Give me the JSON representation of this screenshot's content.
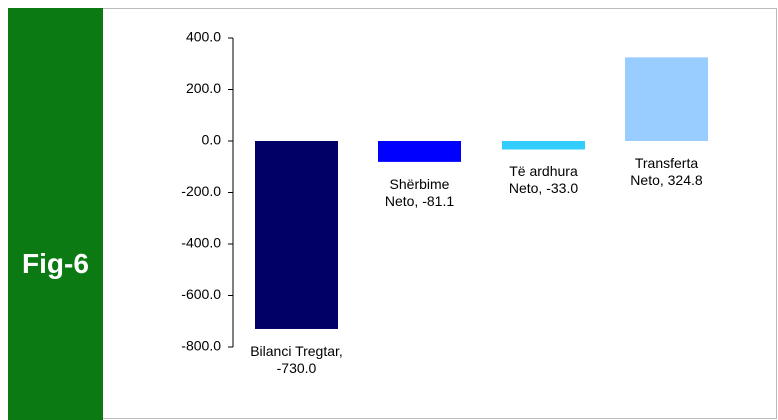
{
  "sidebar": {
    "label": "Fig-6"
  },
  "chart_data": {
    "type": "bar",
    "values": [
      -730.0,
      -81.1,
      -33.0,
      324.8
    ],
    "value_labels": [
      "Bilanci Tregtar, -730.0",
      "Shërbime Neto, -81.1",
      "Të ardhura Neto, -33.0",
      "Transferta Neto, 324.8"
    ],
    "colors": [
      "#000066",
      "#0000ff",
      "#33ccff",
      "#99ccff"
    ],
    "ylim": [
      -800,
      400
    ],
    "yticks": [
      {
        "value": 400,
        "label": "400.0"
      },
      {
        "value": 200,
        "label": "200.0"
      },
      {
        "value": 0,
        "label": "0.0"
      },
      {
        "value": -200,
        "label": "-200.0"
      },
      {
        "value": -400,
        "label": "-400.0"
      },
      {
        "value": -600,
        "label": "-600.0"
      },
      {
        "value": -800,
        "label": "-800.0"
      }
    ]
  }
}
